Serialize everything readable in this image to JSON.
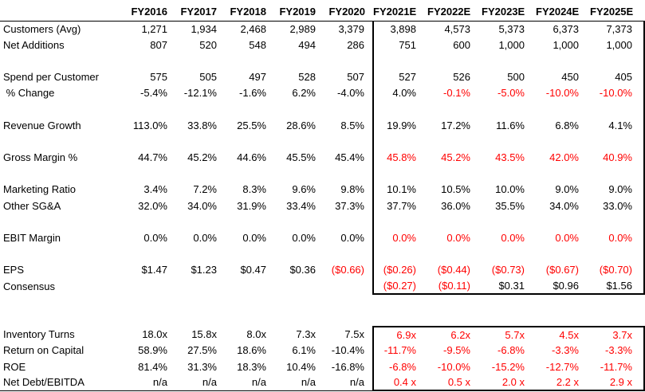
{
  "colors": {
    "negative_estimate_red": "#FF0000",
    "text_black": "#000000",
    "border_black": "#000000",
    "background": "#FFFFFF"
  },
  "chart_data": {
    "type": "table",
    "columns": [
      "",
      "FY2016",
      "FY2017",
      "FY2018",
      "FY2019",
      "FY2020",
      "FY2021E",
      "FY2022E",
      "FY2023E",
      "FY2024E",
      "FY2025E"
    ],
    "historical_columns": [
      "FY2016",
      "FY2017",
      "FY2018",
      "FY2019",
      "FY2020"
    ],
    "estimate_columns": [
      "FY2021E",
      "FY2022E",
      "FY2023E",
      "FY2024E",
      "FY2025E"
    ],
    "rows": [
      {
        "name": "customers-avg",
        "section": 1,
        "label": "Customers (Avg)",
        "values": [
          "1,271",
          "1,934",
          "2,468",
          "2,989",
          "3,379",
          "3,898",
          "4,573",
          "5,373",
          "6,373",
          "7,373"
        ],
        "reds": [
          0,
          0,
          0,
          0,
          0,
          0,
          0,
          0,
          0,
          0
        ]
      },
      {
        "name": "net-additions",
        "section": 1,
        "label": "Net Additions",
        "values": [
          "807",
          "520",
          "548",
          "494",
          "286",
          "751",
          "600",
          "1,000",
          "1,000",
          "1,000"
        ],
        "reds": [
          0,
          0,
          0,
          0,
          0,
          0,
          0,
          0,
          0,
          0
        ]
      },
      {
        "name": "spacer",
        "section": 1,
        "blank": true
      },
      {
        "name": "spend-per-customer",
        "section": 1,
        "label": "Spend per Customer",
        "values": [
          "575",
          "505",
          "497",
          "528",
          "507",
          "527",
          "526",
          "500",
          "450",
          "405"
        ],
        "reds": [
          0,
          0,
          0,
          0,
          0,
          0,
          0,
          0,
          0,
          0
        ]
      },
      {
        "name": "spend-pct-change",
        "section": 1,
        "label": " % Change",
        "values": [
          "-5.4%",
          "-12.1%",
          "-1.6%",
          "6.2%",
          "-4.0%",
          "4.0%",
          "-0.1%",
          "-5.0%",
          "-10.0%",
          "-10.0%"
        ],
        "reds": [
          0,
          0,
          0,
          0,
          0,
          0,
          1,
          1,
          1,
          1
        ]
      },
      {
        "name": "spacer",
        "section": 1,
        "blank": true
      },
      {
        "name": "revenue-growth",
        "section": 1,
        "label": "Revenue Growth",
        "values": [
          "113.0%",
          "33.8%",
          "25.5%",
          "28.6%",
          "8.5%",
          "19.9%",
          "17.2%",
          "11.6%",
          "6.8%",
          "4.1%"
        ],
        "reds": [
          0,
          0,
          0,
          0,
          0,
          0,
          0,
          0,
          0,
          0
        ]
      },
      {
        "name": "spacer",
        "section": 1,
        "blank": true
      },
      {
        "name": "gross-margin-pct",
        "section": 1,
        "label": "Gross Margin %",
        "values": [
          "44.7%",
          "45.2%",
          "44.6%",
          "45.5%",
          "45.4%",
          "45.8%",
          "45.2%",
          "43.5%",
          "42.0%",
          "40.9%"
        ],
        "reds": [
          0,
          0,
          0,
          0,
          0,
          1,
          1,
          1,
          1,
          1
        ]
      },
      {
        "name": "spacer",
        "section": 1,
        "blank": true
      },
      {
        "name": "marketing-ratio",
        "section": 1,
        "label": "Marketing Ratio",
        "values": [
          "3.4%",
          "7.2%",
          "8.3%",
          "9.6%",
          "9.8%",
          "10.1%",
          "10.5%",
          "10.0%",
          "9.0%",
          "9.0%"
        ],
        "reds": [
          0,
          0,
          0,
          0,
          0,
          0,
          0,
          0,
          0,
          0
        ]
      },
      {
        "name": "other-sga",
        "section": 1,
        "label": "Other SG&A",
        "values": [
          "32.0%",
          "34.0%",
          "31.9%",
          "33.4%",
          "37.3%",
          "37.7%",
          "36.0%",
          "35.5%",
          "34.0%",
          "33.0%"
        ],
        "reds": [
          0,
          0,
          0,
          0,
          0,
          0,
          0,
          0,
          0,
          0
        ]
      },
      {
        "name": "spacer",
        "section": 1,
        "blank": true
      },
      {
        "name": "ebit-margin",
        "section": 1,
        "label": "EBIT Margin",
        "values": [
          "0.0%",
          "0.0%",
          "0.0%",
          "0.0%",
          "0.0%",
          "0.0%",
          "0.0%",
          "0.0%",
          "0.0%",
          "0.0%"
        ],
        "reds": [
          0,
          0,
          0,
          0,
          0,
          1,
          1,
          1,
          1,
          1
        ]
      },
      {
        "name": "spacer",
        "section": 1,
        "blank": true
      },
      {
        "name": "eps",
        "section": 1,
        "label": "EPS",
        "values": [
          "$1.47",
          "$1.23",
          "$0.47",
          "$0.36",
          "($0.66)",
          "($0.26)",
          "($0.44)",
          "($0.73)",
          "($0.67)",
          "($0.70)"
        ],
        "reds": [
          0,
          0,
          0,
          0,
          1,
          1,
          1,
          1,
          1,
          1
        ]
      },
      {
        "name": "consensus",
        "section": 1,
        "label": "Consensus",
        "values": [
          "",
          "",
          "",
          "",
          "",
          "($0.27)",
          "($0.11)",
          "$0.31",
          "$0.96",
          "$1.56"
        ],
        "reds": [
          0,
          0,
          0,
          0,
          0,
          1,
          1,
          0,
          0,
          0
        ]
      },
      {
        "name": "spacer",
        "section": 0,
        "blank": true
      },
      {
        "name": "spacer",
        "section": 0,
        "blank": true
      },
      {
        "name": "inventory-turns",
        "section": 2,
        "label": "Inventory Turns",
        "values": [
          "18.0x",
          "15.8x",
          "8.0x",
          "7.3x",
          "7.5x",
          "6.9x",
          "6.2x",
          "5.7x",
          "4.5x",
          "3.7x"
        ],
        "reds": [
          0,
          0,
          0,
          0,
          0,
          1,
          1,
          1,
          1,
          1
        ]
      },
      {
        "name": "return-on-capital",
        "section": 2,
        "label": "Return on Capital",
        "values": [
          "58.9%",
          "27.5%",
          "18.6%",
          "6.1%",
          "-10.4%",
          "-11.7%",
          "-9.5%",
          "-6.8%",
          "-3.3%",
          "-3.3%"
        ],
        "reds": [
          0,
          0,
          0,
          0,
          0,
          1,
          1,
          1,
          1,
          1
        ]
      },
      {
        "name": "roe",
        "section": 2,
        "label": "ROE",
        "values": [
          "81.4%",
          "31.3%",
          "18.3%",
          "10.4%",
          "-16.8%",
          "-6.8%",
          "-10.0%",
          "-15.2%",
          "-12.7%",
          "-11.7%"
        ],
        "reds": [
          0,
          0,
          0,
          0,
          0,
          1,
          1,
          1,
          1,
          1
        ]
      },
      {
        "name": "net-debt-ebitda",
        "section": 2,
        "label": "Net Debt/EBITDA",
        "values": [
          "n/a",
          "n/a",
          "n/a",
          "n/a",
          "n/a",
          "0.4 x",
          "0.5 x",
          "2.0 x",
          "2.2 x",
          "2.9 x"
        ],
        "reds": [
          0,
          0,
          0,
          0,
          0,
          1,
          1,
          1,
          1,
          1
        ]
      }
    ]
  }
}
